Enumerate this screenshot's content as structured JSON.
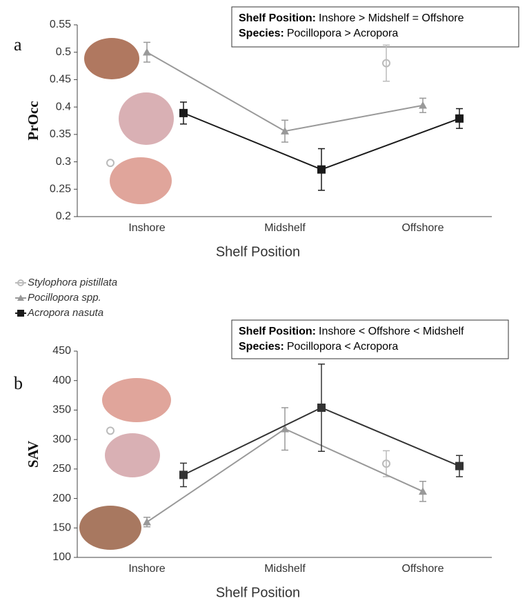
{
  "chart_data": [
    {
      "type": "line",
      "panel": "a",
      "ylabel": "PrOcc",
      "xlabel": "Shelf Position",
      "categories": [
        "Inshore",
        "Midshelf",
        "Offshore"
      ],
      "ylim": [
        0.2,
        0.55
      ],
      "yticks": [
        0.2,
        0.25,
        0.3,
        0.35,
        0.4,
        0.45,
        0.5,
        0.55
      ],
      "annotation": [
        {
          "label": "Shelf Position:",
          "text": "Inshore > Midshelf = Offshore"
        },
        {
          "label": "Species:",
          "text": "Pocillopora > Acropora"
        }
      ],
      "series": [
        {
          "name": "Stylophora pistillata",
          "color": "#bbbbbb",
          "marker": "circle",
          "connected": false,
          "values": [
            0.298,
            null,
            0.48
          ],
          "errors": [
            0,
            null,
            0.033
          ]
        },
        {
          "name": "Pocillopora spp.",
          "color": "#999999",
          "marker": "triangle",
          "connected": true,
          "values": [
            0.5,
            0.356,
            0.403
          ],
          "errors": [
            0.018,
            0.02,
            0.013
          ]
        },
        {
          "name": "Acropora nasuta",
          "color": "#1a1a1a",
          "marker": "square",
          "connected": true,
          "values": [
            0.389,
            0.286,
            0.379
          ],
          "errors": [
            0.02,
            0.038,
            0.018
          ]
        }
      ]
    },
    {
      "type": "line",
      "panel": "b",
      "ylabel": "SAV",
      "xlabel": "Shelf Position",
      "categories": [
        "Inshore",
        "Midshelf",
        "Offshore"
      ],
      "ylim": [
        100,
        450
      ],
      "yticks": [
        100,
        150,
        200,
        250,
        300,
        350,
        400,
        450
      ],
      "annotation": [
        {
          "label": "Shelf Position:",
          "text": "Inshore < Offshore < Midshelf"
        },
        {
          "label": "Species:",
          "text": "Pocillopora < Acropora"
        }
      ],
      "series": [
        {
          "color": "#bbbbbb",
          "marker": "circle",
          "connected": false,
          "values": [
            315,
            null,
            259
          ],
          "errors": [
            0,
            null,
            22
          ]
        },
        {
          "color": "#999999",
          "marker": "triangle",
          "connected": true,
          "values": [
            160,
            318,
            212
          ],
          "errors": [
            8,
            36,
            17
          ]
        },
        {
          "color": "#333333",
          "marker": "square",
          "connected": true,
          "values": [
            240,
            354,
            255
          ],
          "errors": [
            20,
            74,
            18
          ]
        }
      ]
    }
  ]
}
